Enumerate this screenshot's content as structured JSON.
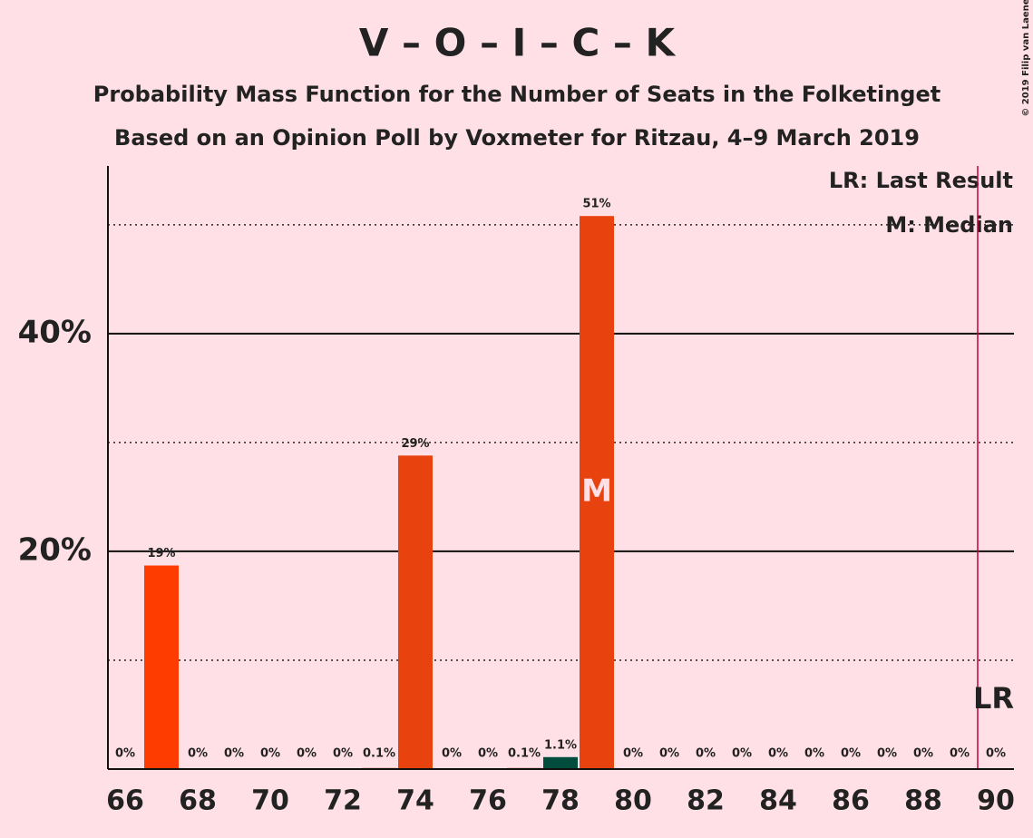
{
  "chart_data": {
    "type": "bar",
    "title": "V – O – I – C – K",
    "subtitle": [
      "Probability Mass Function for the Number of Seats in the Folketinget",
      "Based on an Opinion Poll by Voxmeter for Ritzau, 4–9 March 2019"
    ],
    "copyright": "© 2019 Filip van Laenen",
    "categories": [
      66,
      67,
      68,
      69,
      70,
      71,
      72,
      73,
      74,
      75,
      76,
      77,
      78,
      79,
      80,
      81,
      82,
      83,
      84,
      85,
      86,
      87,
      88,
      89,
      90
    ],
    "values": [
      0,
      18.7,
      0,
      0,
      0,
      0,
      0,
      0.1,
      28.8,
      0,
      0,
      0.1,
      1.1,
      50.8,
      0,
      0,
      0,
      0,
      0,
      0,
      0,
      0,
      0,
      0,
      0
    ],
    "value_labels": [
      "0%",
      "19%",
      "0%",
      "0%",
      "0%",
      "0%",
      "0%",
      "0.1%",
      "29%",
      "0%",
      "0%",
      "0.1%",
      "1.1%",
      "51%",
      "0%",
      "0%",
      "0%",
      "0%",
      "0%",
      "0%",
      "0%",
      "0%",
      "0%",
      "0%",
      "0%"
    ],
    "colors": [
      "#e8420e",
      "#ff3c00",
      "#e8420e",
      "#e8420e",
      "#e8420e",
      "#e8420e",
      "#e8420e",
      "#e8420e",
      "#e8420e",
      "#e8420e",
      "#e8420e",
      "#e8420e",
      "#004d3d",
      "#e8420e",
      "#e8420e",
      "#e8420e",
      "#e8420e",
      "#e8420e",
      "#e8420e",
      "#e8420e",
      "#e8420e",
      "#e8420e",
      "#e8420e",
      "#e8420e",
      "#e8420e"
    ],
    "xlim": [
      65.5,
      90.5
    ],
    "xticks": [
      66,
      68,
      70,
      72,
      74,
      76,
      78,
      80,
      82,
      84,
      86,
      88,
      90
    ],
    "ylim": [
      0,
      55.4
    ],
    "yticks": [
      {
        "value": 20,
        "label": "20%"
      },
      {
        "value": 40,
        "label": "40%"
      }
    ],
    "minor_yticks": [
      10,
      30,
      50
    ],
    "median": {
      "value": 79,
      "label": "M"
    },
    "last_result": {
      "value": 90,
      "label": "LR"
    },
    "legend": [
      "LR: Last Result",
      "M: Median"
    ]
  }
}
